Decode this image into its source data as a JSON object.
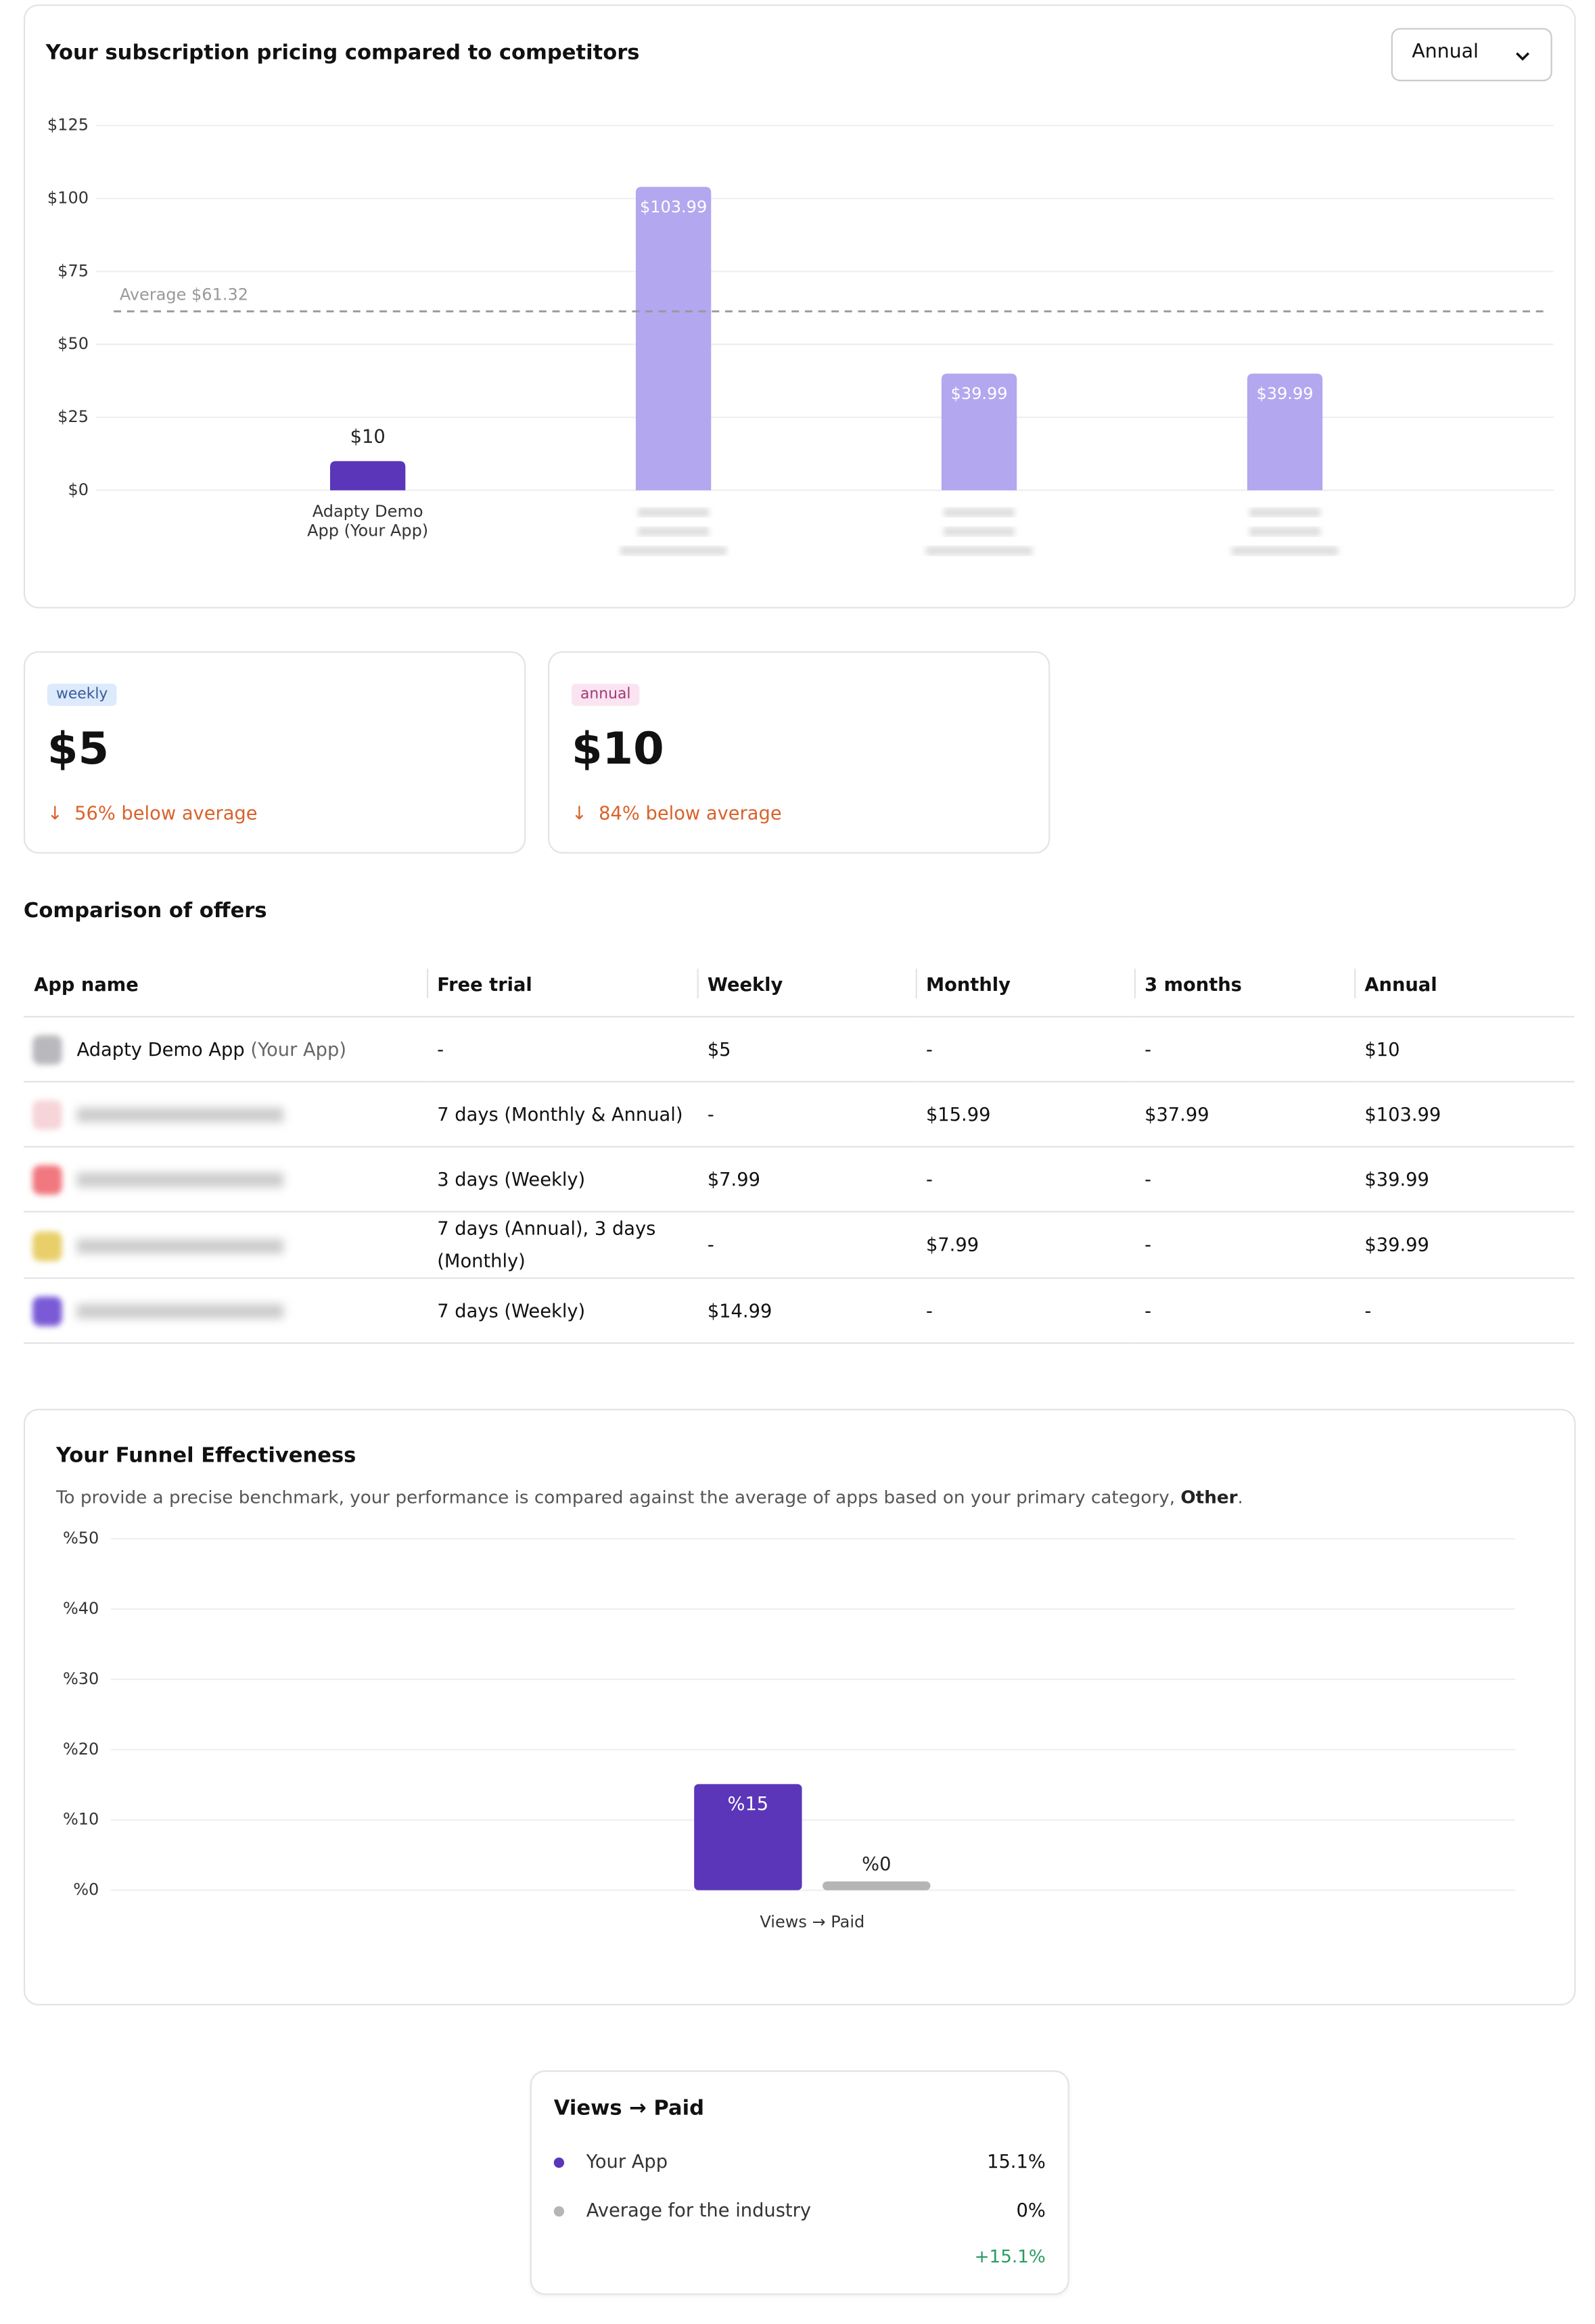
{
  "chart_data": [
    {
      "type": "bar",
      "title": "Your subscription pricing compared to competitors",
      "categories": [
        "Adapty Demo App (Your App)",
        null,
        null,
        null
      ],
      "values": [
        10,
        103.99,
        39.99,
        39.99
      ],
      "value_labels": [
        "$10",
        "$103.99",
        "$39.99",
        "$39.99"
      ],
      "colors": [
        "#5b36b9",
        "#b3a7ef",
        "#b3a7ef",
        "#b3a7ef"
      ],
      "ylim": [
        0,
        125
      ],
      "yticks": [
        {
          "value": 0,
          "label": "$0"
        },
        {
          "value": 25,
          "label": "$25"
        },
        {
          "value": 50,
          "label": "$50"
        },
        {
          "value": 75,
          "label": "$75"
        },
        {
          "value": 100,
          "label": "$100"
        },
        {
          "value": 125,
          "label": "$125"
        }
      ],
      "grid": true,
      "average": {
        "value": 61.32,
        "label": "Average $61.32"
      }
    },
    {
      "type": "grouped-bar",
      "title": "Your Funnel Effectiveness",
      "subtitle": "To provide a precise benchmark, your performance is compared against the average of apps based on your primary category, ",
      "subtitle_emphasis": "Other",
      "subtitle_end": ".",
      "categories": [
        "Views → Paid"
      ],
      "series": [
        {
          "name": "Your App",
          "color": "#5b36b9",
          "values": [
            15.1
          ],
          "value_labels": [
            "%15"
          ]
        },
        {
          "name": "Average for the industry",
          "color": "#b5b5b5",
          "values": [
            0
          ],
          "value_labels": [
            "%0"
          ]
        }
      ],
      "ylim": [
        0,
        50
      ],
      "yticks": [
        {
          "value": 0,
          "label": "%0"
        },
        {
          "value": 10,
          "label": "%10"
        },
        {
          "value": 20,
          "label": "%20"
        },
        {
          "value": 30,
          "label": "%30"
        },
        {
          "value": 40,
          "label": "%40"
        },
        {
          "value": 50,
          "label": "%50"
        }
      ],
      "grid": true
    }
  ],
  "dropdown": "Annual",
  "price_cards": [
    {
      "tag": "weekly",
      "price": "$5",
      "delta": "56% below average"
    },
    {
      "tag": "annual",
      "price": "$10",
      "delta": "84% below average"
    }
  ],
  "offers": {
    "title": "Comparison of offers",
    "columns": [
      "App name",
      "Free trial",
      "Weekly",
      "Monthly",
      "3 months",
      "Annual"
    ],
    "your_app_suffix": "(Your App)",
    "rows": [
      [
        "Adapty Demo App",
        "-",
        "$5",
        "-",
        "-",
        "$10"
      ],
      [
        null,
        "7 days (Monthly & Annual)",
        "-",
        "$15.99",
        "$37.99",
        "$103.99"
      ],
      [
        null,
        "3 days (Weekly)",
        "$7.99",
        "-",
        "-",
        "$39.99"
      ],
      [
        null,
        "7 days (Annual), 3 days (Monthly)",
        "-",
        "$7.99",
        "-",
        "$39.99"
      ],
      [
        null,
        "7 days (Weekly)",
        "$14.99",
        "-",
        "-",
        "-"
      ]
    ]
  },
  "tooltip": {
    "values": [
      "15.1%",
      "0%"
    ],
    "difference": "+15.1%"
  }
}
